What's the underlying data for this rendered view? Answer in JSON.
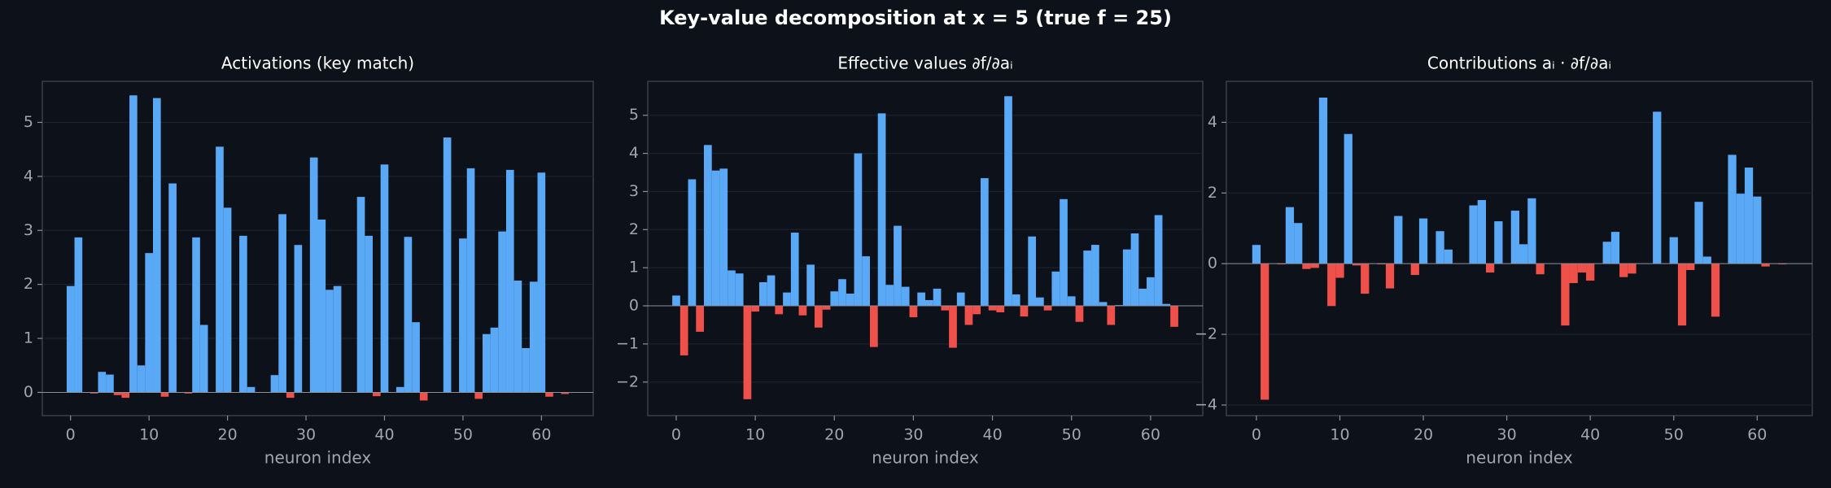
{
  "title": "Key-value decomposition at x = 5  (true f = 25)",
  "chart_data": [
    {
      "type": "bar",
      "title": "Activations  (key match)",
      "xlabel": "neuron index",
      "color": "#5aa9f6",
      "negative_color": "#f0504a",
      "grid": true,
      "x": [
        0,
        1,
        2,
        3,
        4,
        5,
        6,
        7,
        8,
        9,
        10,
        11,
        12,
        13,
        14,
        15,
        16,
        17,
        18,
        19,
        20,
        21,
        22,
        23,
        24,
        25,
        26,
        27,
        28,
        29,
        30,
        31,
        32,
        33,
        34,
        35,
        36,
        37,
        38,
        39,
        40,
        41,
        42,
        43,
        44,
        45,
        46,
        47,
        48,
        49,
        50,
        51,
        52,
        53,
        54,
        55,
        56,
        57,
        58,
        59,
        60,
        61,
        62,
        63
      ],
      "values": [
        1.97,
        2.87,
        0,
        -0.02,
        0.38,
        0.33,
        -0.05,
        -0.1,
        5.5,
        0.5,
        2.58,
        5.45,
        -0.08,
        3.87,
        0,
        -0.02,
        2.87,
        1.25,
        0,
        4.55,
        3.42,
        0,
        2.9,
        0.1,
        0,
        0,
        0.32,
        3.3,
        -0.1,
        2.73,
        0,
        4.35,
        3.2,
        1.9,
        1.97,
        0,
        0,
        3.62,
        2.9,
        -0.07,
        4.22,
        0,
        0.1,
        2.88,
        1.3,
        -0.15,
        0,
        0,
        4.72,
        0,
        2.85,
        4.15,
        -0.12,
        1.08,
        1.2,
        2.98,
        4.12,
        2.07,
        0.82,
        2.05,
        4.07,
        -0.08,
        0,
        -0.03
      ],
      "xlim": [
        -3.6,
        66.6
      ],
      "ylim": [
        -0.43,
        5.76
      ],
      "xticks": [
        0,
        10,
        20,
        30,
        40,
        50,
        60
      ],
      "yticks": [
        0,
        1,
        2,
        3,
        4,
        5
      ]
    },
    {
      "type": "bar",
      "title": "Effective values  ∂f/∂aᵢ",
      "xlabel": "neuron index",
      "color": "#5aa9f6",
      "negative_color": "#f0504a",
      "grid": true,
      "x": [
        0,
        1,
        2,
        3,
        4,
        5,
        6,
        7,
        8,
        9,
        10,
        11,
        12,
        13,
        14,
        15,
        16,
        17,
        18,
        19,
        20,
        21,
        22,
        23,
        24,
        25,
        26,
        27,
        28,
        29,
        30,
        31,
        32,
        33,
        34,
        35,
        36,
        37,
        38,
        39,
        40,
        41,
        42,
        43,
        44,
        45,
        46,
        47,
        48,
        49,
        50,
        51,
        52,
        53,
        54,
        55,
        56,
        57,
        58,
        59,
        60,
        61,
        62,
        63
      ],
      "values": [
        0.27,
        -1.3,
        3.32,
        -0.68,
        4.22,
        3.55,
        3.6,
        0.93,
        0.85,
        -2.45,
        -0.15,
        0.62,
        0.8,
        -0.22,
        0.35,
        1.92,
        -0.25,
        1.08,
        -0.57,
        -0.1,
        0.38,
        0.7,
        0.32,
        4.0,
        1.3,
        -1.08,
        5.05,
        0.55,
        2.1,
        0.5,
        -0.3,
        0.35,
        0.15,
        0.45,
        -0.12,
        -1.1,
        0.35,
        -0.5,
        -0.22,
        3.35,
        -0.12,
        -0.17,
        5.5,
        0.3,
        -0.28,
        1.82,
        0.22,
        -0.12,
        0.9,
        2.8,
        0.25,
        -0.42,
        1.45,
        1.6,
        0.1,
        -0.5,
        0.02,
        1.48,
        1.9,
        0.45,
        0.75,
        2.38,
        0.05,
        -0.55
      ],
      "xlim": [
        -3.6,
        66.6
      ],
      "ylim": [
        -2.88,
        5.89
      ],
      "xticks": [
        0,
        10,
        20,
        30,
        40,
        50,
        60
      ],
      "yticks": [
        {
          "value": -2,
          "label": "−2"
        },
        {
          "value": -1,
          "label": "−1"
        },
        0,
        1,
        2,
        3,
        4,
        5
      ]
    },
    {
      "type": "bar",
      "title": "Contributions  aᵢ · ∂f/∂aᵢ",
      "xlabel": "neuron index",
      "color": "#5aa9f6",
      "negative_color": "#f0504a",
      "grid": true,
      "x": [
        0,
        1,
        2,
        3,
        4,
        5,
        6,
        7,
        8,
        9,
        10,
        11,
        12,
        13,
        14,
        15,
        16,
        17,
        18,
        19,
        20,
        21,
        22,
        23,
        24,
        25,
        26,
        27,
        28,
        29,
        30,
        31,
        32,
        33,
        34,
        35,
        36,
        37,
        38,
        39,
        40,
        41,
        42,
        43,
        44,
        45,
        46,
        47,
        48,
        49,
        50,
        51,
        52,
        53,
        54,
        55,
        56,
        57,
        58,
        59,
        60,
        61,
        62,
        63
      ],
      "values": [
        0.53,
        -3.85,
        0,
        -0.02,
        1.6,
        1.15,
        -0.15,
        -0.12,
        4.7,
        -1.2,
        -0.4,
        3.67,
        -0.05,
        -0.85,
        0,
        -0.02,
        -0.7,
        1.35,
        0,
        -0.32,
        1.28,
        0,
        0.92,
        0.4,
        0,
        0,
        1.65,
        1.8,
        -0.25,
        1.2,
        0,
        1.5,
        0.55,
        1.85,
        -0.3,
        0,
        0,
        -1.75,
        -0.55,
        -0.25,
        -0.48,
        0,
        0.62,
        0.9,
        -0.38,
        -0.28,
        0,
        0,
        4.3,
        0,
        0.75,
        -1.75,
        -0.18,
        1.75,
        0.2,
        -1.5,
        0,
        3.08,
        1.98,
        2.72,
        1.9,
        -0.08,
        0,
        -0.02
      ],
      "xlim": [
        -3.6,
        66.6
      ],
      "ylim": [
        -4.3,
        5.16
      ],
      "xticks": [
        0,
        10,
        20,
        30,
        40,
        50,
        60
      ],
      "yticks": [
        {
          "value": -4,
          "label": "−4"
        },
        {
          "value": -2,
          "label": "−2"
        },
        0,
        2,
        4
      ]
    }
  ]
}
